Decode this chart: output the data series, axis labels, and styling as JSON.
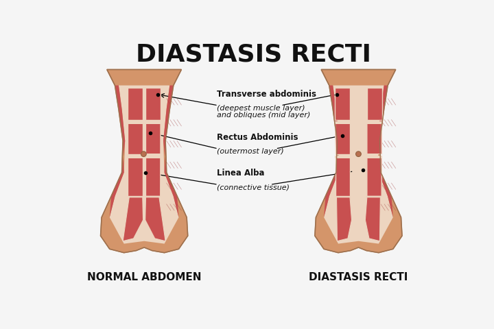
{
  "title": "DIASTASIS RECTI",
  "title_fontsize": 26,
  "title_fontweight": "bold",
  "background_color": "#f5f5f5",
  "skin_color": "#D4956A",
  "skin_shadow": "#C08050",
  "skin_light": "#E8B88A",
  "muscle_color": "#C85050",
  "muscle_mid": "#B84040",
  "fascia_color": "#EDD5C0",
  "linea_color": "#F0E0D0",
  "label1_title": "NORMAL ABDOMEN",
  "label2_title": "DIASTASIS RECTI",
  "label_fontsize": 11,
  "ann_fontsize": 8.5
}
